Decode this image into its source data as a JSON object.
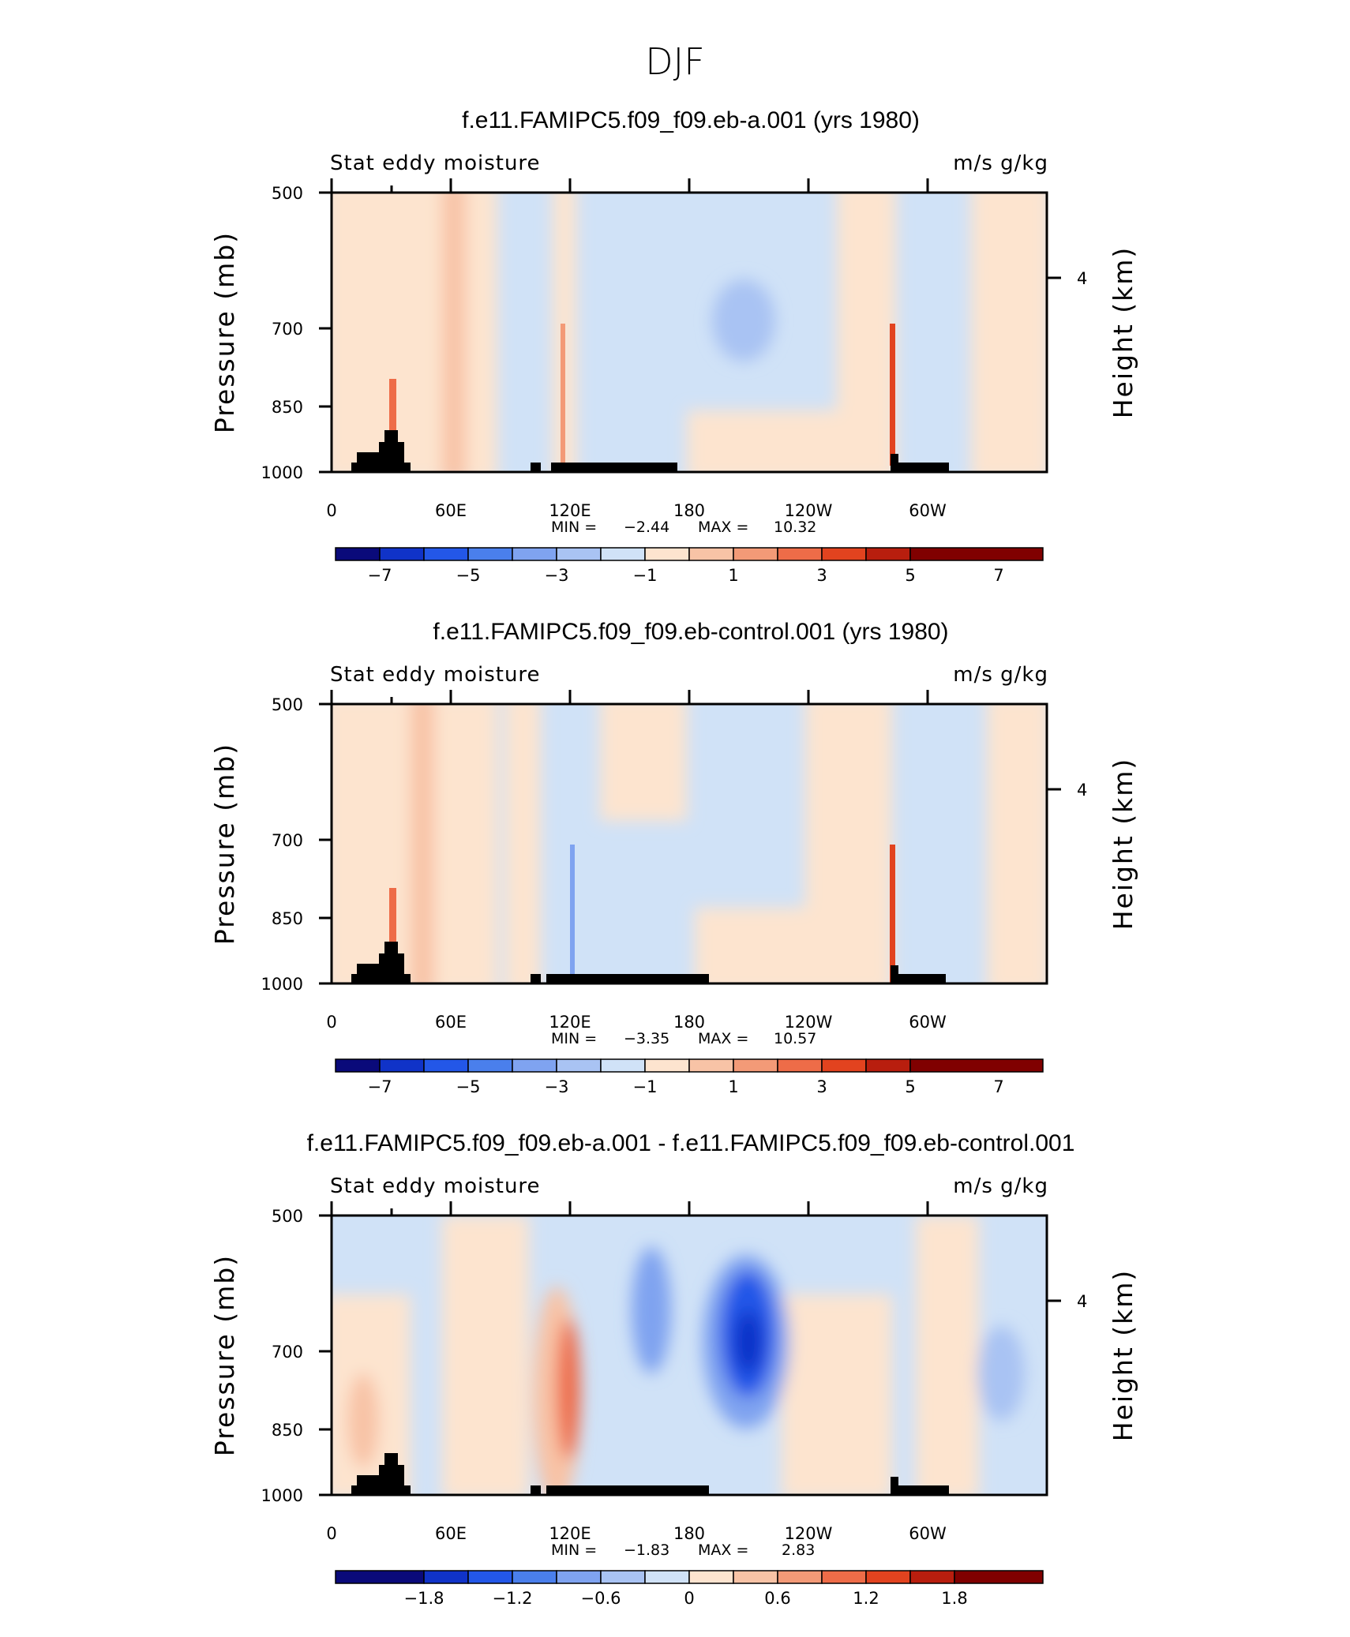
{
  "figure_title": "DJF",
  "chart_data": [
    {
      "type": "heatmap",
      "title": "f.e11.FAMIPC5.f09_f09.eb-a.001 (yrs 1980)",
      "left_label": "Stat eddy moisture",
      "right_label": "m/s g/kg",
      "ylabel": "Pressure (mb)",
      "y2label": "Height (km)",
      "yticks": [
        "500",
        "700",
        "850",
        "1000"
      ],
      "y2ticks": [
        "4"
      ],
      "xticks": [
        "0",
        "60E",
        "120E",
        "180",
        "120W",
        "60W"
      ],
      "min_label": "MIN =",
      "min_value": "-2.44",
      "max_label": "MAX =",
      "max_value": "10.32",
      "colorbar_labels": [
        "-7",
        "-5",
        "-3",
        "-1",
        "1",
        "3",
        "5",
        "7"
      ]
    },
    {
      "type": "heatmap",
      "title": "f.e11.FAMIPC5.f09_f09.eb-control.001 (yrs 1980)",
      "left_label": "Stat eddy moisture",
      "right_label": "m/s g/kg",
      "ylabel": "Pressure (mb)",
      "y2label": "Height (km)",
      "yticks": [
        "500",
        "700",
        "850",
        "1000"
      ],
      "y2ticks": [
        "4"
      ],
      "xticks": [
        "0",
        "60E",
        "120E",
        "180",
        "120W",
        "60W"
      ],
      "min_label": "MIN =",
      "min_value": "-3.35",
      "max_label": "MAX =",
      "max_value": "10.57",
      "colorbar_labels": [
        "-7",
        "-5",
        "-3",
        "-1",
        "1",
        "3",
        "5",
        "7"
      ]
    },
    {
      "type": "heatmap",
      "title": "f.e11.FAMIPC5.f09_f09.eb-a.001 - f.e11.FAMIPC5.f09_f09.eb-control.001",
      "left_label": "Stat eddy moisture",
      "right_label": "m/s g/kg",
      "ylabel": "Pressure (mb)",
      "y2label": "Height (km)",
      "yticks": [
        "500",
        "700",
        "850",
        "1000"
      ],
      "y2ticks": [
        "4"
      ],
      "xticks": [
        "0",
        "60E",
        "120E",
        "180",
        "120W",
        "60W"
      ],
      "min_label": "MIN =",
      "min_value": "-1.83",
      "max_label": "MAX =",
      "max_value": "2.83",
      "colorbar_labels": [
        "-1.8",
        "-1.2",
        "-0.6",
        "0",
        "0.6",
        "1.2",
        "1.8"
      ]
    }
  ],
  "colors": {
    "colorbar": [
      "#0a0a7a",
      "#1033c8",
      "#2357e8",
      "#4a7fec",
      "#7fa3f0",
      "#a9c3f3",
      "#d0e2f7",
      "#fde4cf",
      "#f8c3a6",
      "#f39a77",
      "#ee6c48",
      "#e2431f",
      "#b81e0e",
      "#800000"
    ],
    "topography": "#000000",
    "frame": "#000000"
  }
}
